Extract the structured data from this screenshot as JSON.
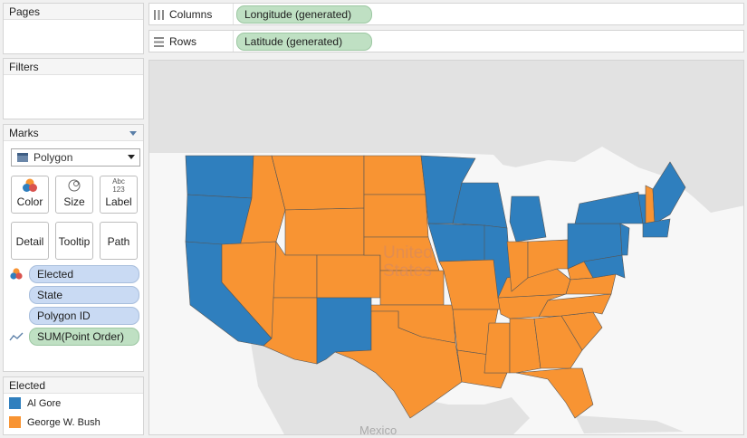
{
  "pages": {
    "title": "Pages"
  },
  "filters": {
    "title": "Filters"
  },
  "marks": {
    "title": "Marks",
    "mark_type": "Polygon",
    "buttons": {
      "color": "Color",
      "size": "Size",
      "label": "Label",
      "label_icon_text": "Abc 123",
      "detail": "Detail",
      "tooltip": "Tooltip",
      "path": "Path"
    },
    "fields": [
      "Elected",
      "State",
      "Polygon ID",
      "SUM(Point Order)"
    ]
  },
  "legend": {
    "title": "Elected",
    "items": [
      {
        "label": "Al Gore",
        "color": "#2f7fbe"
      },
      {
        "label": "George W. Bush",
        "color": "#f89433"
      }
    ]
  },
  "shelves": {
    "columns_label": "Columns",
    "columns_pill": "Longitude (generated)",
    "rows_label": "Rows",
    "rows_pill": "Latitude (generated)"
  },
  "map": {
    "country_label_1": "United",
    "country_label_2": "States",
    "neighbor_label": "Mexico",
    "gore_color": "#2f7fbe",
    "bush_color": "#f89433",
    "land_color": "#e2e2e2",
    "water_color": "#f7f7f7"
  }
}
